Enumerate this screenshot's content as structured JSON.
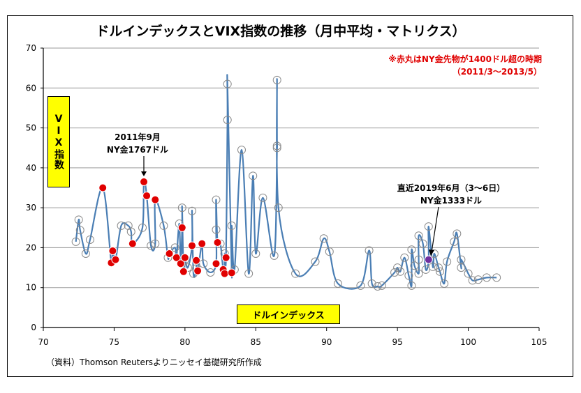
{
  "chart_data": {
    "type": "scatter",
    "title": "ドルインデックスとVIX指数の推移（月中平均・マトリクス）",
    "xlabel": "ドルインデックス",
    "ylabel": "VIX指数",
    "xlim": [
      70,
      105
    ],
    "ylim": [
      0,
      70
    ],
    "x_ticks": [
      "70",
      "75",
      "80",
      "85",
      "90",
      "95",
      "100",
      "105"
    ],
    "y_ticks": [
      "0",
      "10",
      "20",
      "30",
      "40",
      "50",
      "60",
      "70"
    ],
    "grid": "horizontal",
    "line_color": "#4a7eb4",
    "highlight_color": "#e00000",
    "latest_color": "#7030a0",
    "points": [
      [
        72.3,
        21.5
      ],
      [
        72.5,
        27.0
      ],
      [
        72.6,
        24.4
      ],
      [
        73.0,
        18.5
      ],
      [
        73.3,
        22.0
      ],
      [
        75.5,
        25.5
      ],
      [
        76.0,
        25.5
      ],
      [
        76.2,
        24.0
      ],
      [
        77.0,
        25.0
      ],
      [
        77.6,
        20.5
      ],
      [
        77.9,
        21.0
      ],
      [
        78.5,
        25.5
      ],
      [
        78.8,
        17.5
      ],
      [
        79.3,
        20.0
      ],
      [
        79.6,
        26.0
      ],
      [
        80.0,
        17.0
      ],
      [
        80.2,
        15.0
      ],
      [
        80.6,
        13.5
      ],
      [
        80.8,
        14.8
      ],
      [
        81.3,
        16.0
      ],
      [
        81.8,
        13.8
      ],
      [
        82.2,
        24.5
      ],
      [
        82.5,
        21.0
      ],
      [
        82.8,
        18.5
      ],
      [
        83.3,
        25.5
      ],
      [
        83.5,
        14.5
      ],
      [
        84.5,
        13.5
      ],
      [
        85.5,
        32.5
      ],
      [
        84.8,
        38.0
      ],
      [
        83.0,
        61.0
      ],
      [
        86.5,
        62.0
      ],
      [
        86.5,
        45.0
      ],
      [
        86.5,
        45.5
      ],
      [
        84.0,
        44.5
      ],
      [
        83.0,
        52.0
      ],
      [
        86.6,
        30.0
      ],
      [
        80.5,
        29.2
      ],
      [
        79.8,
        30.0
      ],
      [
        82.2,
        32.0
      ],
      [
        85.0,
        18.5
      ],
      [
        86.3,
        18.0
      ],
      [
        87.8,
        13.5
      ],
      [
        89.2,
        16.5
      ],
      [
        89.8,
        22.3
      ],
      [
        90.2,
        19.0
      ],
      [
        90.8,
        11.0
      ],
      [
        92.4,
        10.5
      ],
      [
        93.0,
        19.3
      ],
      [
        93.2,
        11.0
      ],
      [
        93.6,
        10.3
      ],
      [
        93.9,
        10.5
      ],
      [
        95.2,
        14.0
      ],
      [
        96.0,
        10.5
      ],
      [
        96.5,
        23.0
      ],
      [
        96.8,
        21.0
      ],
      [
        97.2,
        25.3
      ],
      [
        97.6,
        18.5
      ],
      [
        97.9,
        15.0
      ],
      [
        98.3,
        11.0
      ],
      [
        99.0,
        21.5
      ],
      [
        99.2,
        23.5
      ],
      [
        99.5,
        15.0
      ],
      [
        100.0,
        13.5
      ],
      [
        100.3,
        11.8
      ],
      [
        100.7,
        12.0
      ],
      [
        101.3,
        12.5
      ],
      [
        102.0,
        12.5
      ],
      [
        95.5,
        17.5
      ],
      [
        96.0,
        19.5
      ],
      [
        96.5,
        17.0
      ],
      [
        97.5,
        15.2
      ],
      [
        98.0,
        14.0
      ],
      [
        96.2,
        15.5
      ],
      [
        95.8,
        13.0
      ],
      [
        94.8,
        13.8
      ],
      [
        95.0,
        15.0
      ],
      [
        96.5,
        13.5
      ],
      [
        97.0,
        14.5
      ],
      [
        98.5,
        16.5
      ],
      [
        99.5,
        17.0
      ]
    ],
    "highlight_points": [
      [
        74.2,
        35.0
      ],
      [
        77.1,
        36.5
      ],
      [
        77.3,
        33.0
      ],
      [
        77.9,
        32.0
      ],
      [
        79.8,
        25.0
      ],
      [
        76.3,
        21.0
      ],
      [
        74.9,
        19.2
      ],
      [
        74.8,
        16.2
      ],
      [
        75.1,
        17.0
      ],
      [
        78.9,
        18.5
      ],
      [
        79.4,
        17.5
      ],
      [
        79.7,
        16.0
      ],
      [
        80.0,
        17.5
      ],
      [
        79.9,
        14.0
      ],
      [
        80.8,
        16.8
      ],
      [
        80.9,
        14.2
      ],
      [
        80.5,
        20.5
      ],
      [
        81.2,
        21.0
      ],
      [
        82.3,
        21.3
      ],
      [
        82.9,
        17.5
      ],
      [
        82.2,
        16.0
      ],
      [
        82.7,
        14.5
      ],
      [
        82.8,
        13.5
      ],
      [
        83.3,
        13.7
      ]
    ],
    "latest_point": [
      97.2,
      17.0
    ],
    "annotations": {
      "sept2011": [
        "2011年9月",
        "NY金1767ドル"
      ],
      "latest": [
        "直近2019年6月（3～6日）",
        "NY金1333ドル"
      ],
      "note": [
        "※赤丸はNY金先物が1400ドル超の時期",
        "（2011/3～2013/5）"
      ]
    }
  },
  "source": "（資料）Thomson Reutersよりニッセイ基礎研究所作成"
}
